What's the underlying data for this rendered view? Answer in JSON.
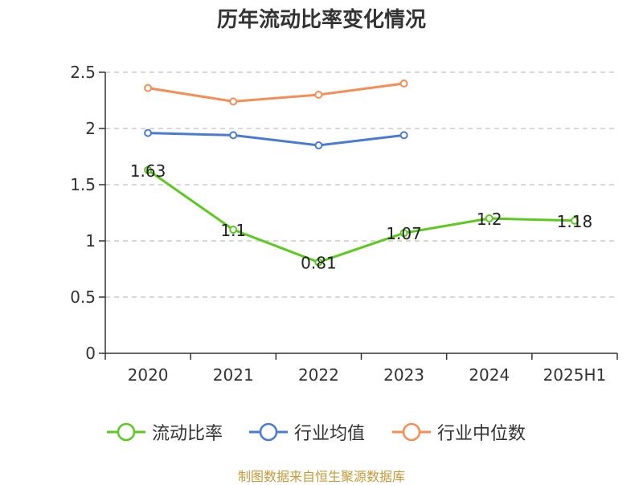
{
  "title": "历年流动比率变化情况",
  "source": "制图数据来自恒生聚源数据库",
  "chart_data": {
    "type": "line",
    "categories": [
      "2020",
      "2021",
      "2022",
      "2023",
      "2024",
      "2025H1"
    ],
    "ylim": [
      0,
      2.5
    ],
    "yticks": [
      0,
      0.5,
      1,
      1.5,
      2,
      2.5
    ],
    "ytick_labels": [
      "0",
      "0.5",
      "1",
      "1.5",
      "2",
      "2.5"
    ],
    "grid": true,
    "legend_position": "bottom",
    "series": [
      {
        "name": "流动比率",
        "color": "#5cc91f",
        "values": [
          1.63,
          1.1,
          0.81,
          1.07,
          1.2,
          1.18
        ],
        "labels": [
          "1.63",
          "1.1",
          "0.81",
          "1.07",
          "1.2",
          "1.18"
        ]
      },
      {
        "name": "行业均值",
        "color": "#4a7bd4",
        "values": [
          1.96,
          1.94,
          1.85,
          1.94,
          null,
          null
        ]
      },
      {
        "name": "行业中位数",
        "color": "#f58d55",
        "values": [
          2.36,
          2.24,
          2.3,
          2.4,
          null,
          null
        ]
      }
    ]
  }
}
